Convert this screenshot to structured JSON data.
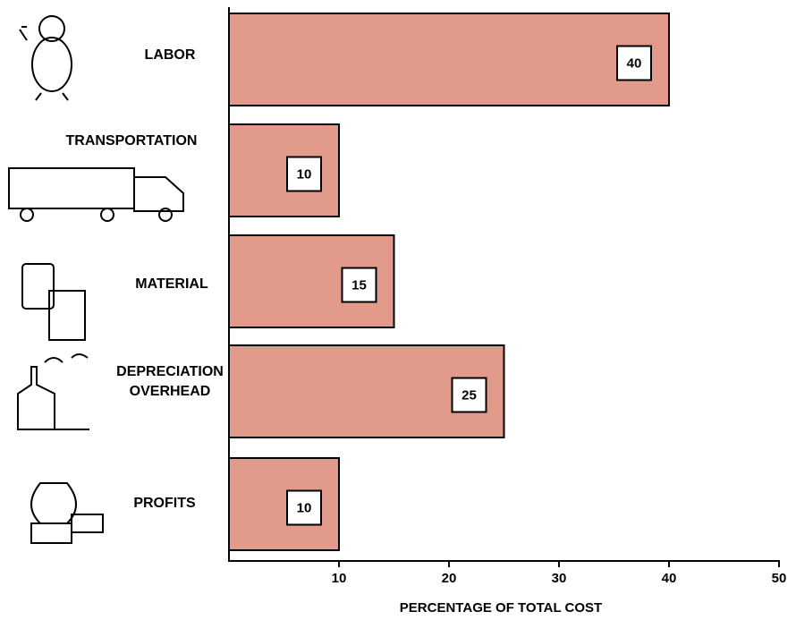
{
  "chart_data": {
    "type": "hbar",
    "categories": [
      "LABOR",
      "TRANSPORTATION",
      "MATERIAL",
      "DEPRECIATION OVERHEAD",
      "PROFITS"
    ],
    "values": [
      40,
      10,
      15,
      25,
      10
    ],
    "color": "#e29a8b",
    "xlim": [
      0,
      50
    ],
    "xticks": [
      10,
      20,
      30,
      40,
      50
    ],
    "x_label": "PERCENTAGE OF TOTAL COST"
  }
}
